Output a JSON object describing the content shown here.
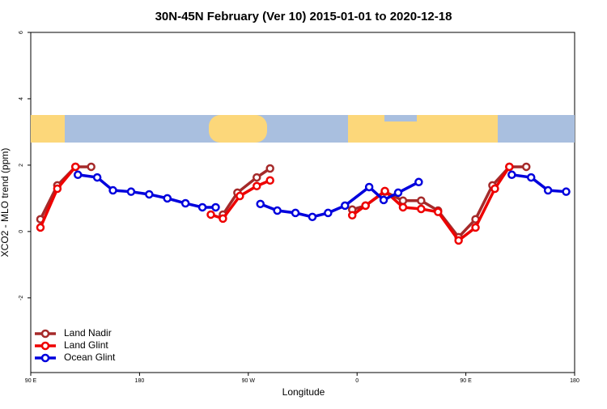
{
  "chart_data": {
    "type": "line",
    "title": "30N-45N February (Ver 10)   2015-01-01 to 2020-12-18",
    "x_label": "Longitude",
    "y_label": "XCO2 - MLO trend (ppm)",
    "xlim": [
      90,
      540
    ],
    "xticks": [
      {
        "value": 90,
        "label": "90 E"
      },
      {
        "value": 180,
        "label": "180"
      },
      {
        "value": 270,
        "label": "90 W"
      },
      {
        "value": 360,
        "label": "0"
      },
      {
        "value": 450,
        "label": "90 E"
      },
      {
        "value": 540,
        "label": "180"
      }
    ],
    "ylim": [
      -4.25,
      6
    ],
    "yticks": [
      -2,
      0,
      2,
      4,
      6
    ],
    "legend": "bottom-left",
    "series": [
      {
        "name": "Land Nadir",
        "color": "#a52a2a",
        "x": [
          98,
          112,
          127,
          140,
          null,
          249,
          261,
          277,
          288,
          null,
          356,
          367,
          383,
          398,
          413,
          427,
          444,
          458,
          472,
          486,
          500
        ],
        "values": [
          0.37,
          1.39,
          1.95,
          1.95,
          null,
          0.51,
          1.17,
          1.63,
          1.9,
          null,
          0.66,
          0.78,
          1.2,
          0.93,
          0.93,
          0.63,
          -0.17,
          0.37,
          1.39,
          1.95,
          1.95
        ]
      },
      {
        "name": "Land Glint",
        "color": "#ee0000",
        "x": [
          98,
          112,
          127,
          null,
          239,
          249,
          263,
          277,
          288,
          null,
          356,
          367,
          383,
          398,
          413,
          427,
          444,
          458,
          474,
          486
        ],
        "values": [
          0.12,
          1.29,
          1.95,
          null,
          0.51,
          0.39,
          1.07,
          1.37,
          1.54,
          null,
          0.49,
          0.78,
          1.22,
          0.73,
          0.68,
          0.59,
          -0.27,
          0.12,
          1.29,
          1.95
        ]
      },
      {
        "name": "Ocean Glint",
        "color": "#0000dd",
        "x": [
          129,
          145,
          158,
          173,
          188,
          203,
          218,
          232,
          243,
          null,
          280,
          294,
          309,
          323,
          336,
          350,
          370,
          382,
          394,
          411,
          null,
          488,
          504,
          518,
          533
        ],
        "values": [
          1.71,
          1.63,
          1.24,
          1.2,
          1.12,
          1.0,
          0.85,
          0.73,
          0.73,
          null,
          0.83,
          0.63,
          0.56,
          0.44,
          0.56,
          0.78,
          1.34,
          0.95,
          1.17,
          1.49,
          null,
          1.71,
          1.63,
          1.24,
          1.2
        ]
      }
    ]
  }
}
